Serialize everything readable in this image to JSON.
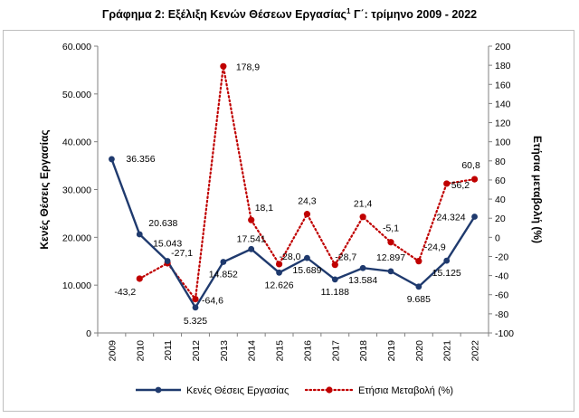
{
  "title": {
    "main": "Γράφημα 2: Εξέλιξη Κενών Θέσεων Εργασίας",
    "sup": "1",
    "rest": " Γ΄: τρίμηνο 2009 - 2022"
  },
  "chart_data": {
    "type": "line",
    "categories": [
      "2009",
      "2010",
      "2011",
      "2012",
      "2013",
      "2014",
      "2015",
      "2016",
      "2017",
      "2018",
      "2019",
      "2020",
      "2021",
      "2022"
    ],
    "ylabel": "Κενές Θέσεις Εργασίας",
    "y2label": "Ετήσια μεταβολή (%)",
    "ylim": [
      0,
      60000
    ],
    "y2lim": [
      -100,
      200
    ],
    "y_ticks": [
      "0",
      "10.000",
      "20.000",
      "30.000",
      "40.000",
      "50.000",
      "60.000"
    ],
    "y2_ticks": [
      "-100",
      "-80",
      "-60",
      "-40",
      "-20",
      "0",
      "20",
      "40",
      "60",
      "80",
      "100",
      "120",
      "140",
      "160",
      "180",
      "200"
    ],
    "grid": false,
    "legend_position": "bottom",
    "series": [
      {
        "name": "Κενές Θέσεις Εργασίας",
        "axis": "left",
        "color": "#1f3a6e",
        "style": "solid",
        "values": [
          36356,
          20638,
          15043,
          5325,
          14852,
          17541,
          12626,
          15689,
          11188,
          13584,
          12897,
          9685,
          15125,
          24324
        ],
        "labels": [
          "36.356",
          "20.638",
          "15.043",
          "5.325",
          "14.852",
          "17.541",
          "12.626",
          "15.689",
          "11.188",
          "13.584",
          "12.897",
          "9.685",
          "15.125",
          "24.324"
        ]
      },
      {
        "name": "Ετήσια Μεταβολή (%)",
        "axis": "right",
        "color": "#c00000",
        "style": "dotted",
        "values": [
          null,
          -43.2,
          -27.1,
          -64.6,
          178.9,
          18.1,
          -28.0,
          24.3,
          -28.7,
          21.4,
          -5.1,
          -24.9,
          56.2,
          60.8
        ],
        "labels": [
          "",
          "-43,2",
          "-27,1",
          "-64,6",
          "178,9",
          "18,1",
          "-28,0",
          "24,3",
          "-28,7",
          "21,4",
          "-5,1",
          "-24,9",
          "56,2",
          "60,8"
        ]
      }
    ]
  }
}
